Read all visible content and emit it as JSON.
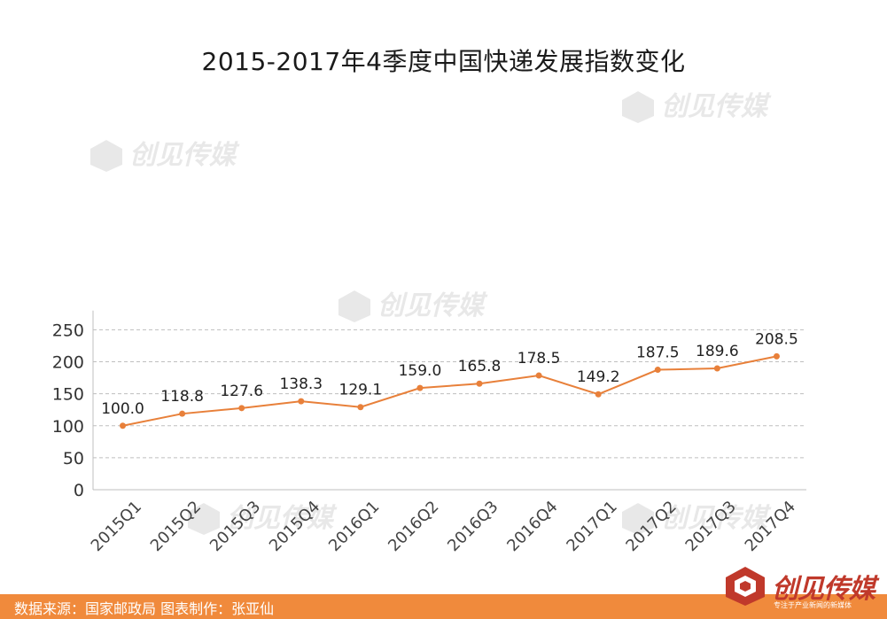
{
  "chart_data": {
    "type": "line",
    "title": "2015-2017年4季度中国快递发展指数变化",
    "categories": [
      "2015Q1",
      "2015Q2",
      "2015Q3",
      "2015Q4",
      "2016Q1",
      "2016Q2",
      "2016Q3",
      "2016Q4",
      "2017Q1",
      "2017Q2",
      "2017Q3",
      "2017Q4"
    ],
    "series": [
      {
        "values": [
          100.0,
          118.8,
          127.6,
          138.3,
          129.1,
          159.0,
          165.8,
          178.5,
          149.2,
          187.5,
          189.6,
          208.5
        ]
      }
    ],
    "data_labels": [
      "100.0",
      "118.8",
      "127.6",
      "138.3",
      "129.1",
      "159.0",
      "165.8",
      "178.5",
      "149.2",
      "187.5",
      "189.6",
      "208.5"
    ],
    "yticks": [
      0,
      50,
      100,
      150,
      200,
      250
    ],
    "ylim": [
      0,
      280
    ],
    "grid": true,
    "line_color": "#e8803a",
    "grid_color": "#bfbfbf"
  },
  "footer": {
    "source": "数据来源：国家邮政局  图表制作：张亚仙",
    "color": "#f08a3c"
  },
  "brand": {
    "name": "创见传媒",
    "slogan": "专注于产业新闻的新媒体",
    "icon": "cube-logo-icon"
  }
}
